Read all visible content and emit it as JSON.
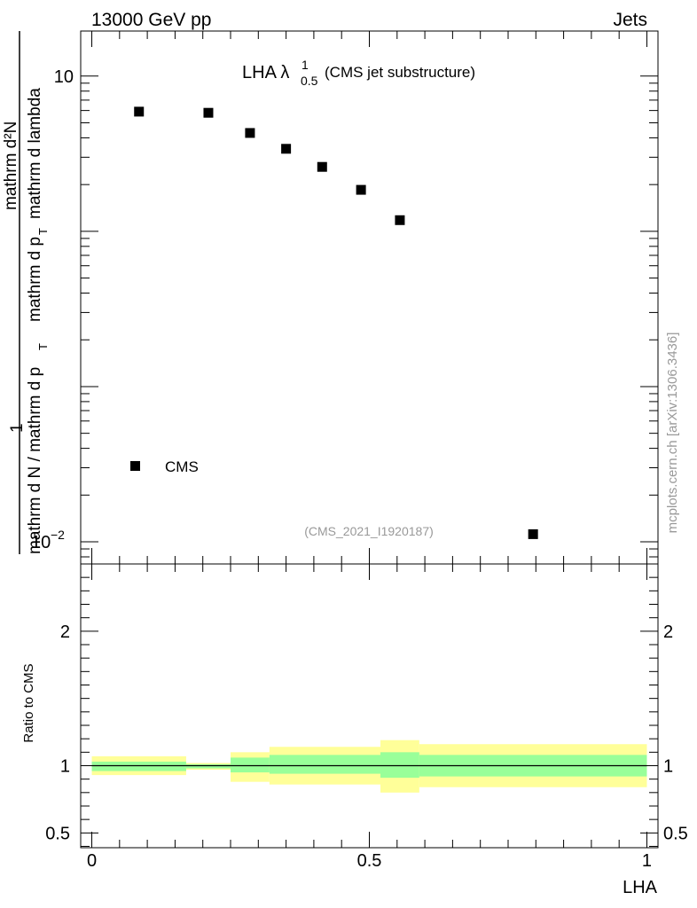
{
  "header": {
    "left": "13000 GeV pp",
    "right": "Jets"
  },
  "side_label": "mcplots.cern.ch [arXiv:1306.3436]",
  "plot_title": {
    "main": "LHA λ",
    "sup": "1",
    "sub": "0.5",
    "suffix": "(CMS jet substructure)"
  },
  "watermark": "(CMS_2021_I1920187)",
  "legend": {
    "label": "CMS"
  },
  "ylabel_main": {
    "one": "1",
    "den": "mathrm d N / mathrm d p",
    "den_sub": "T",
    "num": "mathrm d²N",
    "num2": "mathrm d p",
    "num2_sub": "T",
    "num3": "mathrm d lambda"
  },
  "ylabel_ratio": "Ratio to CMS",
  "xlabel": "LHA",
  "colors": {
    "band_outer": "#ffff99",
    "band_inner": "#99ff99",
    "marker": "#000000"
  },
  "chart_data": [
    {
      "type": "scatter",
      "panel": "main",
      "yscale": "log",
      "xlim": [
        -0.02,
        1.02
      ],
      "ylim": [
        0.0072,
        19.5
      ],
      "yticks": [
        {
          "value": 10,
          "label": "10"
        },
        {
          "value": 0.01,
          "label": "10−2"
        }
      ],
      "series": [
        {
          "name": "CMS",
          "x": [
            0.085,
            0.21,
            0.285,
            0.35,
            0.415,
            0.485,
            0.555,
            0.795
          ],
          "y": [
            5.9,
            5.8,
            4.3,
            3.4,
            2.6,
            1.85,
            1.18,
            0.0112
          ]
        }
      ]
    },
    {
      "type": "area",
      "panel": "ratio",
      "xlim": [
        -0.02,
        1.02
      ],
      "ylim": [
        0.39,
        2.5
      ],
      "yticks": [
        {
          "value": 2,
          "label": "2"
        },
        {
          "value": 1,
          "label": "1"
        },
        {
          "value": 0.5,
          "label": "0.5"
        }
      ],
      "xticks": [
        {
          "value": 0,
          "label": "0"
        },
        {
          "value": 0.5,
          "label": "0.5"
        },
        {
          "value": 1,
          "label": "1"
        }
      ],
      "bins": [
        {
          "lo": 0.0,
          "hi": 0.17,
          "inner": [
            0.96,
            1.03
          ],
          "outer": [
            0.93,
            1.07
          ]
        },
        {
          "lo": 0.17,
          "hi": 0.25,
          "inner": [
            0.98,
            1.01
          ],
          "outer": [
            0.97,
            1.02
          ]
        },
        {
          "lo": 0.25,
          "hi": 0.32,
          "inner": [
            0.95,
            1.06
          ],
          "outer": [
            0.88,
            1.1
          ]
        },
        {
          "lo": 0.32,
          "hi": 0.52,
          "inner": [
            0.94,
            1.08
          ],
          "outer": [
            0.86,
            1.14
          ]
        },
        {
          "lo": 0.52,
          "hi": 0.59,
          "inner": [
            0.91,
            1.1
          ],
          "outer": [
            0.8,
            1.19
          ]
        },
        {
          "lo": 0.59,
          "hi": 1.0,
          "inner": [
            0.92,
            1.08
          ],
          "outer": [
            0.84,
            1.16
          ]
        }
      ],
      "reference_line": 1
    }
  ]
}
